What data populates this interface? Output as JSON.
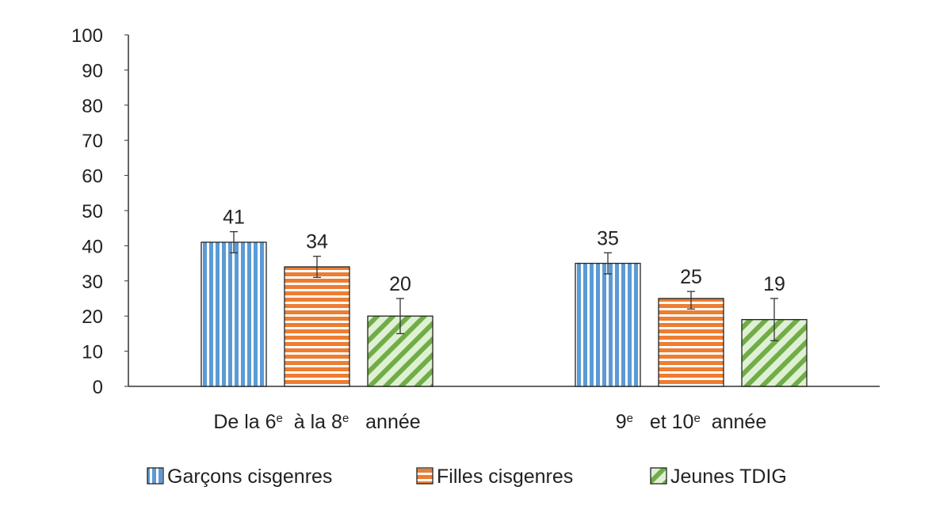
{
  "chart_data": {
    "type": "bar",
    "categories": [
      {
        "parts": [
          {
            "text": "De la 6"
          },
          {
            "sup": "e"
          },
          {
            "text": "  à la 8"
          },
          {
            "sup": "e"
          },
          {
            "text": "   année"
          }
        ]
      },
      {
        "parts": [
          {
            "text": "9"
          },
          {
            "sup": "e"
          },
          {
            "text": "   et 10"
          },
          {
            "sup": "e"
          },
          {
            "text": "  année"
          }
        ]
      }
    ],
    "series": [
      {
        "name": "Garçons cisgenres",
        "values": [
          41,
          35
        ],
        "error_low": [
          38,
          32
        ],
        "error_high": [
          44,
          38
        ],
        "color": "#5b9bd5",
        "pattern": "vertical-stripes"
      },
      {
        "name": "Filles cisgenres",
        "values": [
          34,
          25
        ],
        "error_low": [
          31,
          22
        ],
        "error_high": [
          37,
          27
        ],
        "color": "#ed7d31",
        "pattern": "horizontal-stripes"
      },
      {
        "name": "Jeunes TDIG",
        "values": [
          20,
          19
        ],
        "error_low": [
          15,
          13
        ],
        "error_high": [
          25,
          25
        ],
        "color": "#70ad47",
        "pattern": "diagonal-stripes"
      }
    ],
    "data_labels": [
      "41",
      "34",
      "20",
      "35",
      "25",
      "19"
    ],
    "y_ticks": [
      "0",
      "10",
      "20",
      "30",
      "40",
      "50",
      "60",
      "70",
      "80",
      "90",
      "100"
    ],
    "ylim": [
      0,
      100
    ],
    "grid": false,
    "legend_position": "bottom"
  }
}
